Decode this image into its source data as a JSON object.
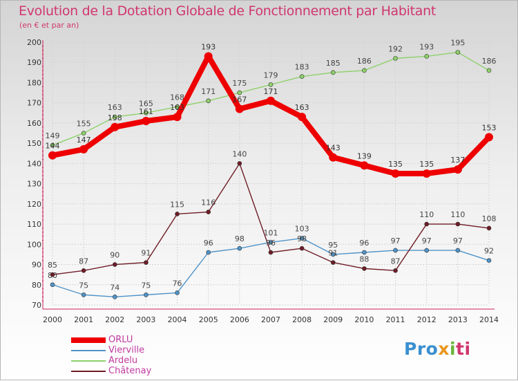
{
  "title": "Evolution de la Dotation Globale de Fonctionnement par Habitant",
  "subtitle": "(en € et par an)",
  "brand": "Proxiti",
  "chart_data": {
    "type": "line",
    "x": [
      2000,
      2001,
      2002,
      2003,
      2004,
      2005,
      2006,
      2007,
      2008,
      2009,
      2010,
      2011,
      2012,
      2013,
      2014
    ],
    "ylim": [
      70,
      200
    ],
    "yticks": [
      70,
      80,
      90,
      100,
      110,
      120,
      130,
      140,
      150,
      160,
      170,
      180,
      190,
      200
    ],
    "grid": true,
    "legend_position": "bottom-left",
    "series": [
      {
        "name": "Ardelu",
        "color": "#8ed16a",
        "values": [
          149,
          155,
          163,
          165,
          168,
          171,
          175,
          179,
          183,
          185,
          186,
          192,
          193,
          195,
          186
        ]
      },
      {
        "name": "Vierville",
        "color": "#4f93c8",
        "values": [
          80,
          75,
          74,
          75,
          76,
          96,
          98,
          101,
          103,
          95,
          96,
          97,
          97,
          97,
          92
        ]
      },
      {
        "name": "Châtenay",
        "color": "#6e1c26",
        "values": [
          85,
          87,
          90,
          91,
          115,
          116,
          140,
          96,
          98,
          91,
          88,
          87,
          110,
          110,
          108
        ]
      },
      {
        "name": "ORLU",
        "color": "#ee0000",
        "values": [
          144,
          147,
          158,
          161,
          163,
          193,
          167,
          171,
          163,
          143,
          139,
          135,
          135,
          137,
          153
        ]
      }
    ],
    "legend_order": [
      "ORLU",
      "Vierville",
      "Ardelu",
      "Châtenay"
    ]
  }
}
